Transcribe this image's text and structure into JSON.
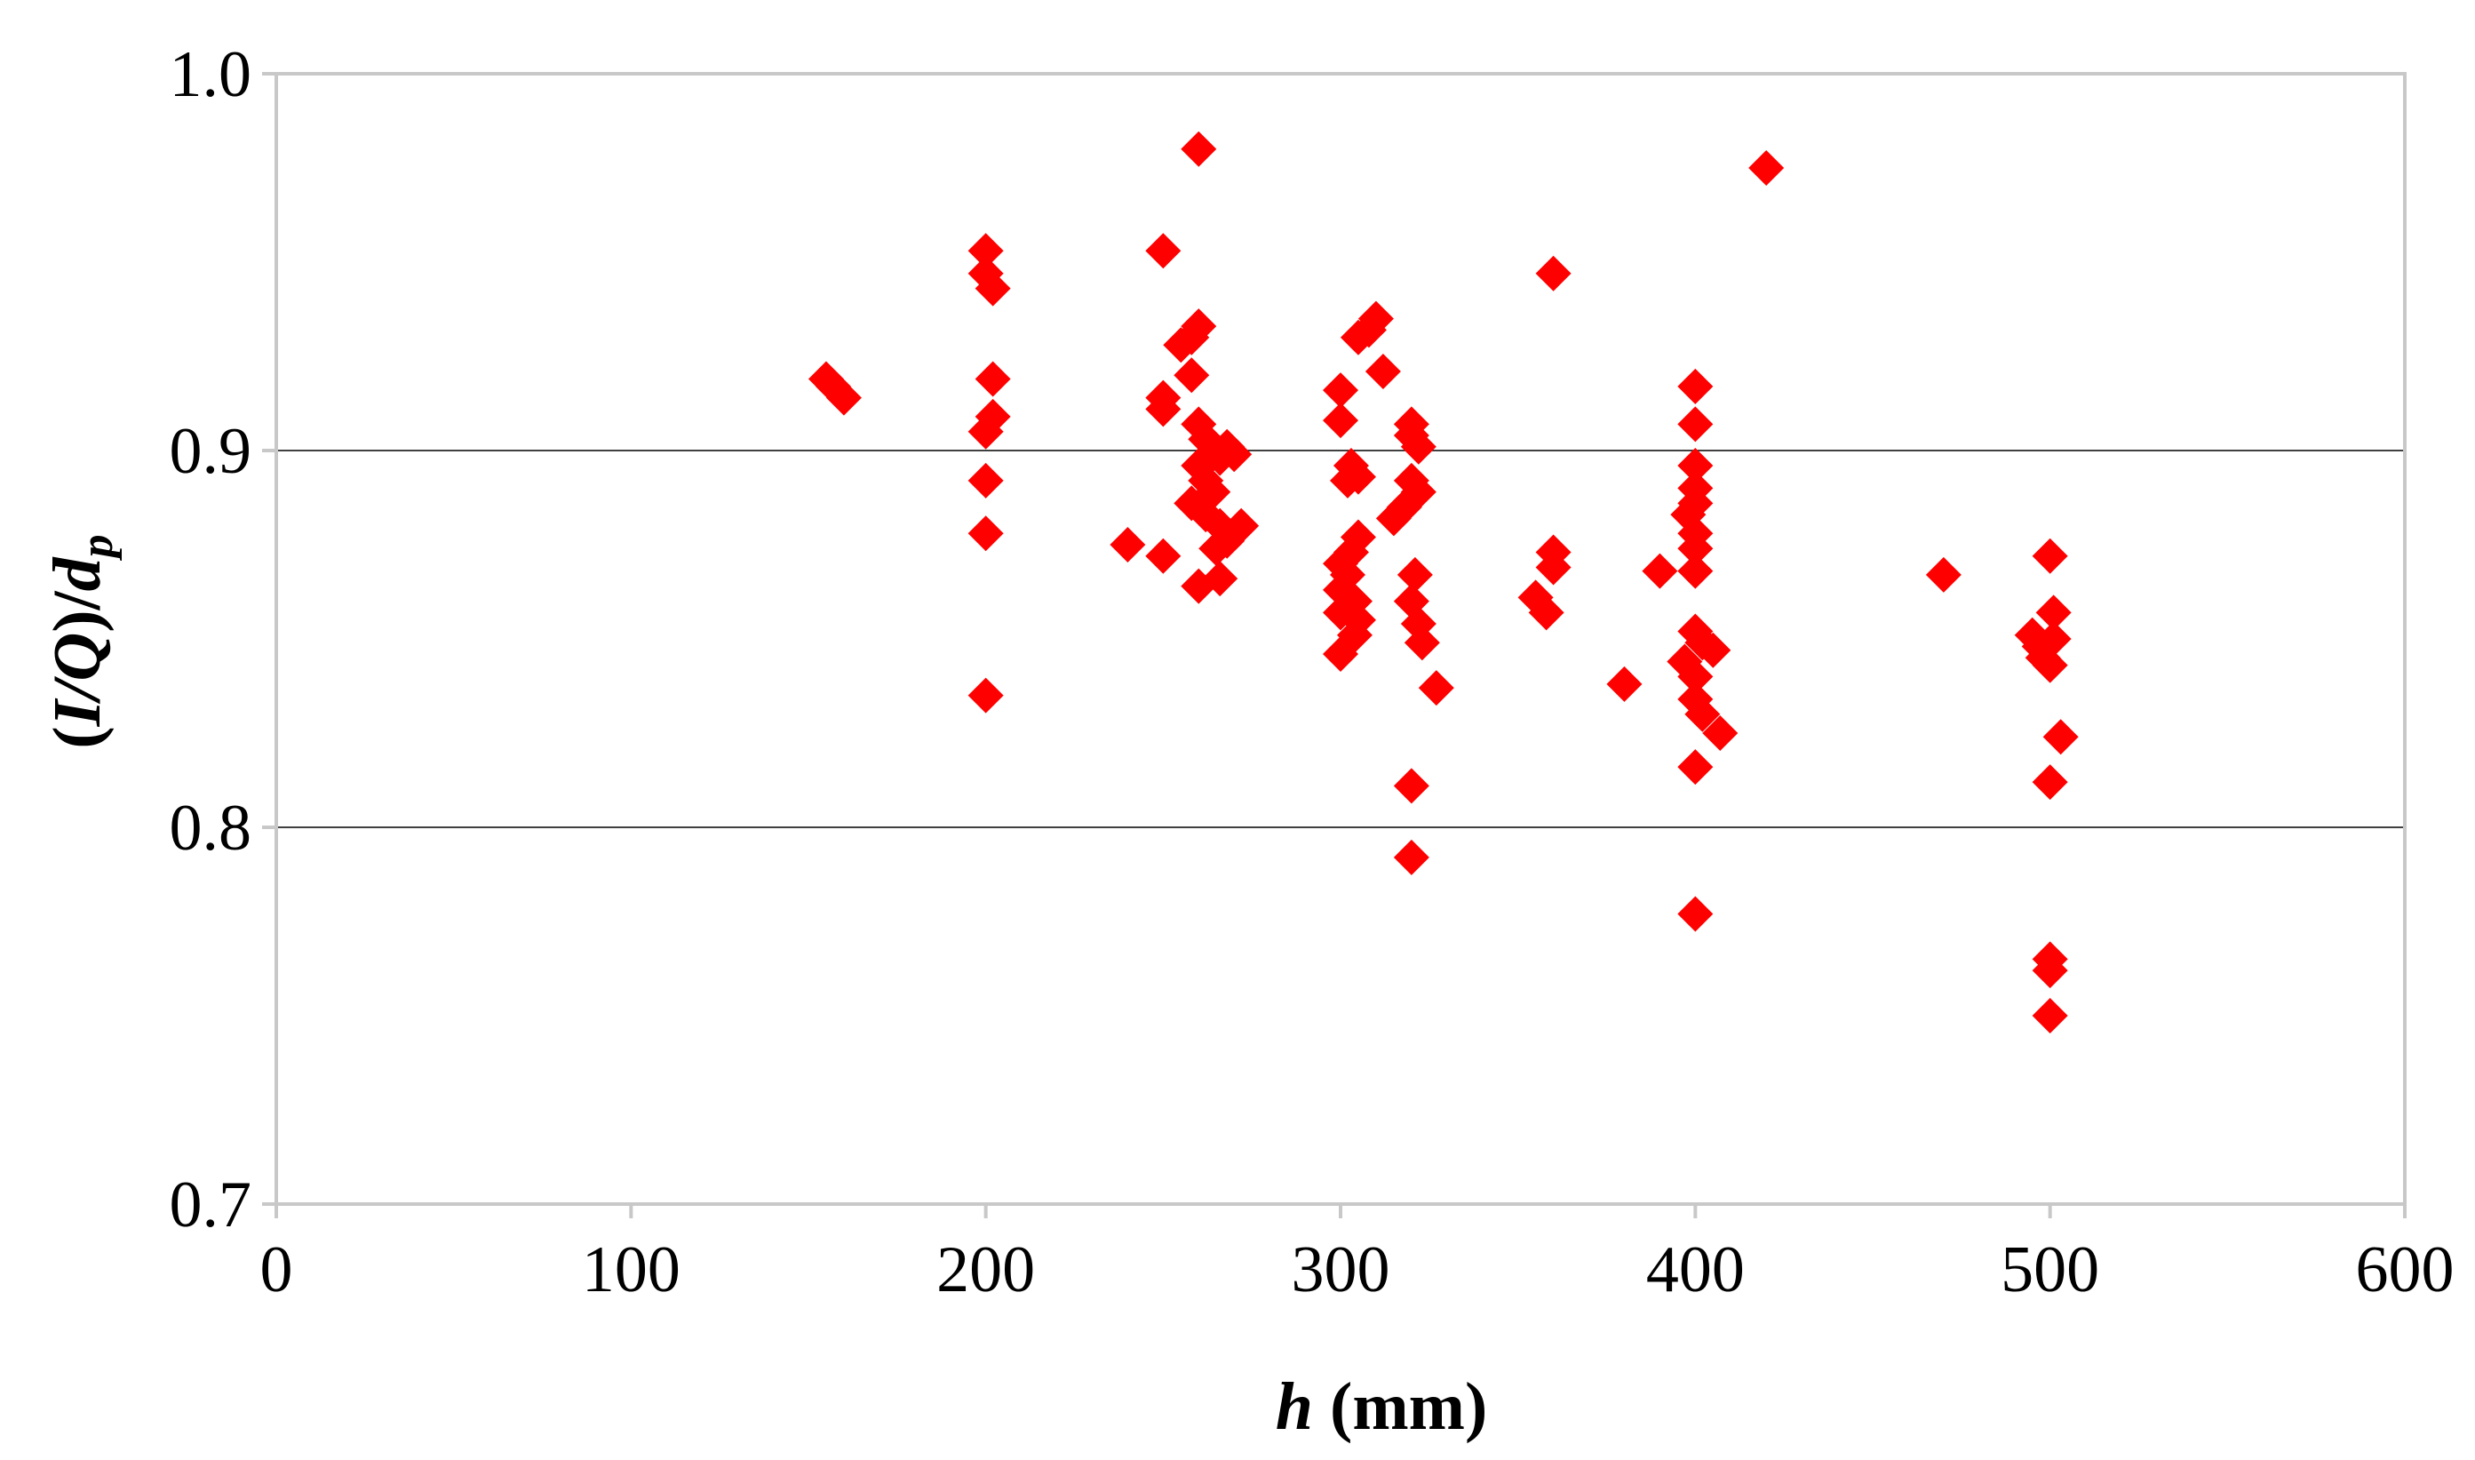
{
  "chart_data": {
    "type": "scatter",
    "title": "",
    "xlabel": {
      "italic": "h",
      "rest": " (mm)"
    },
    "ylabel": {
      "open": "(",
      "italic1": "I/Q",
      "close": ")/",
      "italic2": "d",
      "subscript": "p"
    },
    "xlim": [
      0,
      600
    ],
    "ylim": [
      0.7,
      1.0
    ],
    "x_ticks": [
      "0",
      "100",
      "200",
      "300",
      "400",
      "500",
      "600"
    ],
    "y_ticks": [
      "0.7",
      "0.8",
      "0.9",
      "1.0"
    ],
    "gridlines_y": [
      0.8,
      0.9
    ],
    "legend": "none",
    "marker": "diamond",
    "series": [
      {
        "color": "#ff0000",
        "points": [
          [
            155,
            0.919
          ],
          [
            157,
            0.917
          ],
          [
            160,
            0.914
          ],
          [
            200,
            0.953
          ],
          [
            200,
            0.947
          ],
          [
            202,
            0.943
          ],
          [
            202,
            0.919
          ],
          [
            202,
            0.909
          ],
          [
            200,
            0.905
          ],
          [
            200,
            0.892
          ],
          [
            200,
            0.878
          ],
          [
            200,
            0.835
          ],
          [
            240,
            0.875
          ],
          [
            250,
            0.953
          ],
          [
            250,
            0.914
          ],
          [
            250,
            0.911
          ],
          [
            250,
            0.872
          ],
          [
            255,
            0.928
          ],
          [
            258,
            0.93
          ],
          [
            260,
            0.933
          ],
          [
            258,
            0.92
          ],
          [
            260,
            0.98
          ],
          [
            260,
            0.907
          ],
          [
            262,
            0.903
          ],
          [
            264,
            0.899
          ],
          [
            266,
            0.898
          ],
          [
            268,
            0.901
          ],
          [
            270,
            0.899
          ],
          [
            260,
            0.896
          ],
          [
            262,
            0.892
          ],
          [
            264,
            0.889
          ],
          [
            258,
            0.886
          ],
          [
            262,
            0.883
          ],
          [
            266,
            0.88
          ],
          [
            268,
            0.876
          ],
          [
            272,
            0.88
          ],
          [
            265,
            0.874
          ],
          [
            260,
            0.864
          ],
          [
            266,
            0.866
          ],
          [
            300,
            0.916
          ],
          [
            300,
            0.908
          ],
          [
            303,
            0.896
          ],
          [
            305,
            0.893
          ],
          [
            302,
            0.892
          ],
          [
            305,
            0.877
          ],
          [
            303,
            0.873
          ],
          [
            300,
            0.87
          ],
          [
            302,
            0.867
          ],
          [
            300,
            0.863
          ],
          [
            304,
            0.86
          ],
          [
            300,
            0.857
          ],
          [
            305,
            0.855
          ],
          [
            304,
            0.851
          ],
          [
            300,
            0.846
          ],
          [
            305,
            0.93
          ],
          [
            308,
            0.932
          ],
          [
            310,
            0.935
          ],
          [
            312,
            0.921
          ],
          [
            315,
            0.882
          ],
          [
            318,
            0.885
          ],
          [
            320,
            0.907
          ],
          [
            320,
            0.904
          ],
          [
            322,
            0.901
          ],
          [
            320,
            0.892
          ],
          [
            322,
            0.889
          ],
          [
            321,
            0.867
          ],
          [
            320,
            0.86
          ],
          [
            322,
            0.854
          ],
          [
            323,
            0.849
          ],
          [
            327,
            0.837
          ],
          [
            320,
            0.811
          ],
          [
            320,
            0.792
          ],
          [
            355,
            0.861
          ],
          [
            358,
            0.857
          ],
          [
            360,
            0.873
          ],
          [
            360,
            0.869
          ],
          [
            360,
            0.947
          ],
          [
            380,
            0.838
          ],
          [
            390,
            0.868
          ],
          [
            400,
            0.917
          ],
          [
            400,
            0.907
          ],
          [
            400,
            0.896
          ],
          [
            400,
            0.89
          ],
          [
            400,
            0.886
          ],
          [
            398,
            0.883
          ],
          [
            400,
            0.878
          ],
          [
            400,
            0.874
          ],
          [
            400,
            0.868
          ],
          [
            400,
            0.852
          ],
          [
            402,
            0.849
          ],
          [
            405,
            0.847
          ],
          [
            397,
            0.844
          ],
          [
            400,
            0.84
          ],
          [
            400,
            0.834
          ],
          [
            402,
            0.83
          ],
          [
            407,
            0.825
          ],
          [
            400,
            0.816
          ],
          [
            400,
            0.777
          ],
          [
            420,
            0.975
          ],
          [
            470,
            0.867
          ],
          [
            495,
            0.851
          ],
          [
            497,
            0.848
          ],
          [
            498,
            0.845
          ],
          [
            500,
            0.843
          ],
          [
            501,
            0.85
          ],
          [
            500,
            0.872
          ],
          [
            501,
            0.857
          ],
          [
            503,
            0.824
          ],
          [
            500,
            0.812
          ],
          [
            500,
            0.765
          ],
          [
            500,
            0.762
          ],
          [
            500,
            0.75
          ]
        ]
      }
    ]
  }
}
